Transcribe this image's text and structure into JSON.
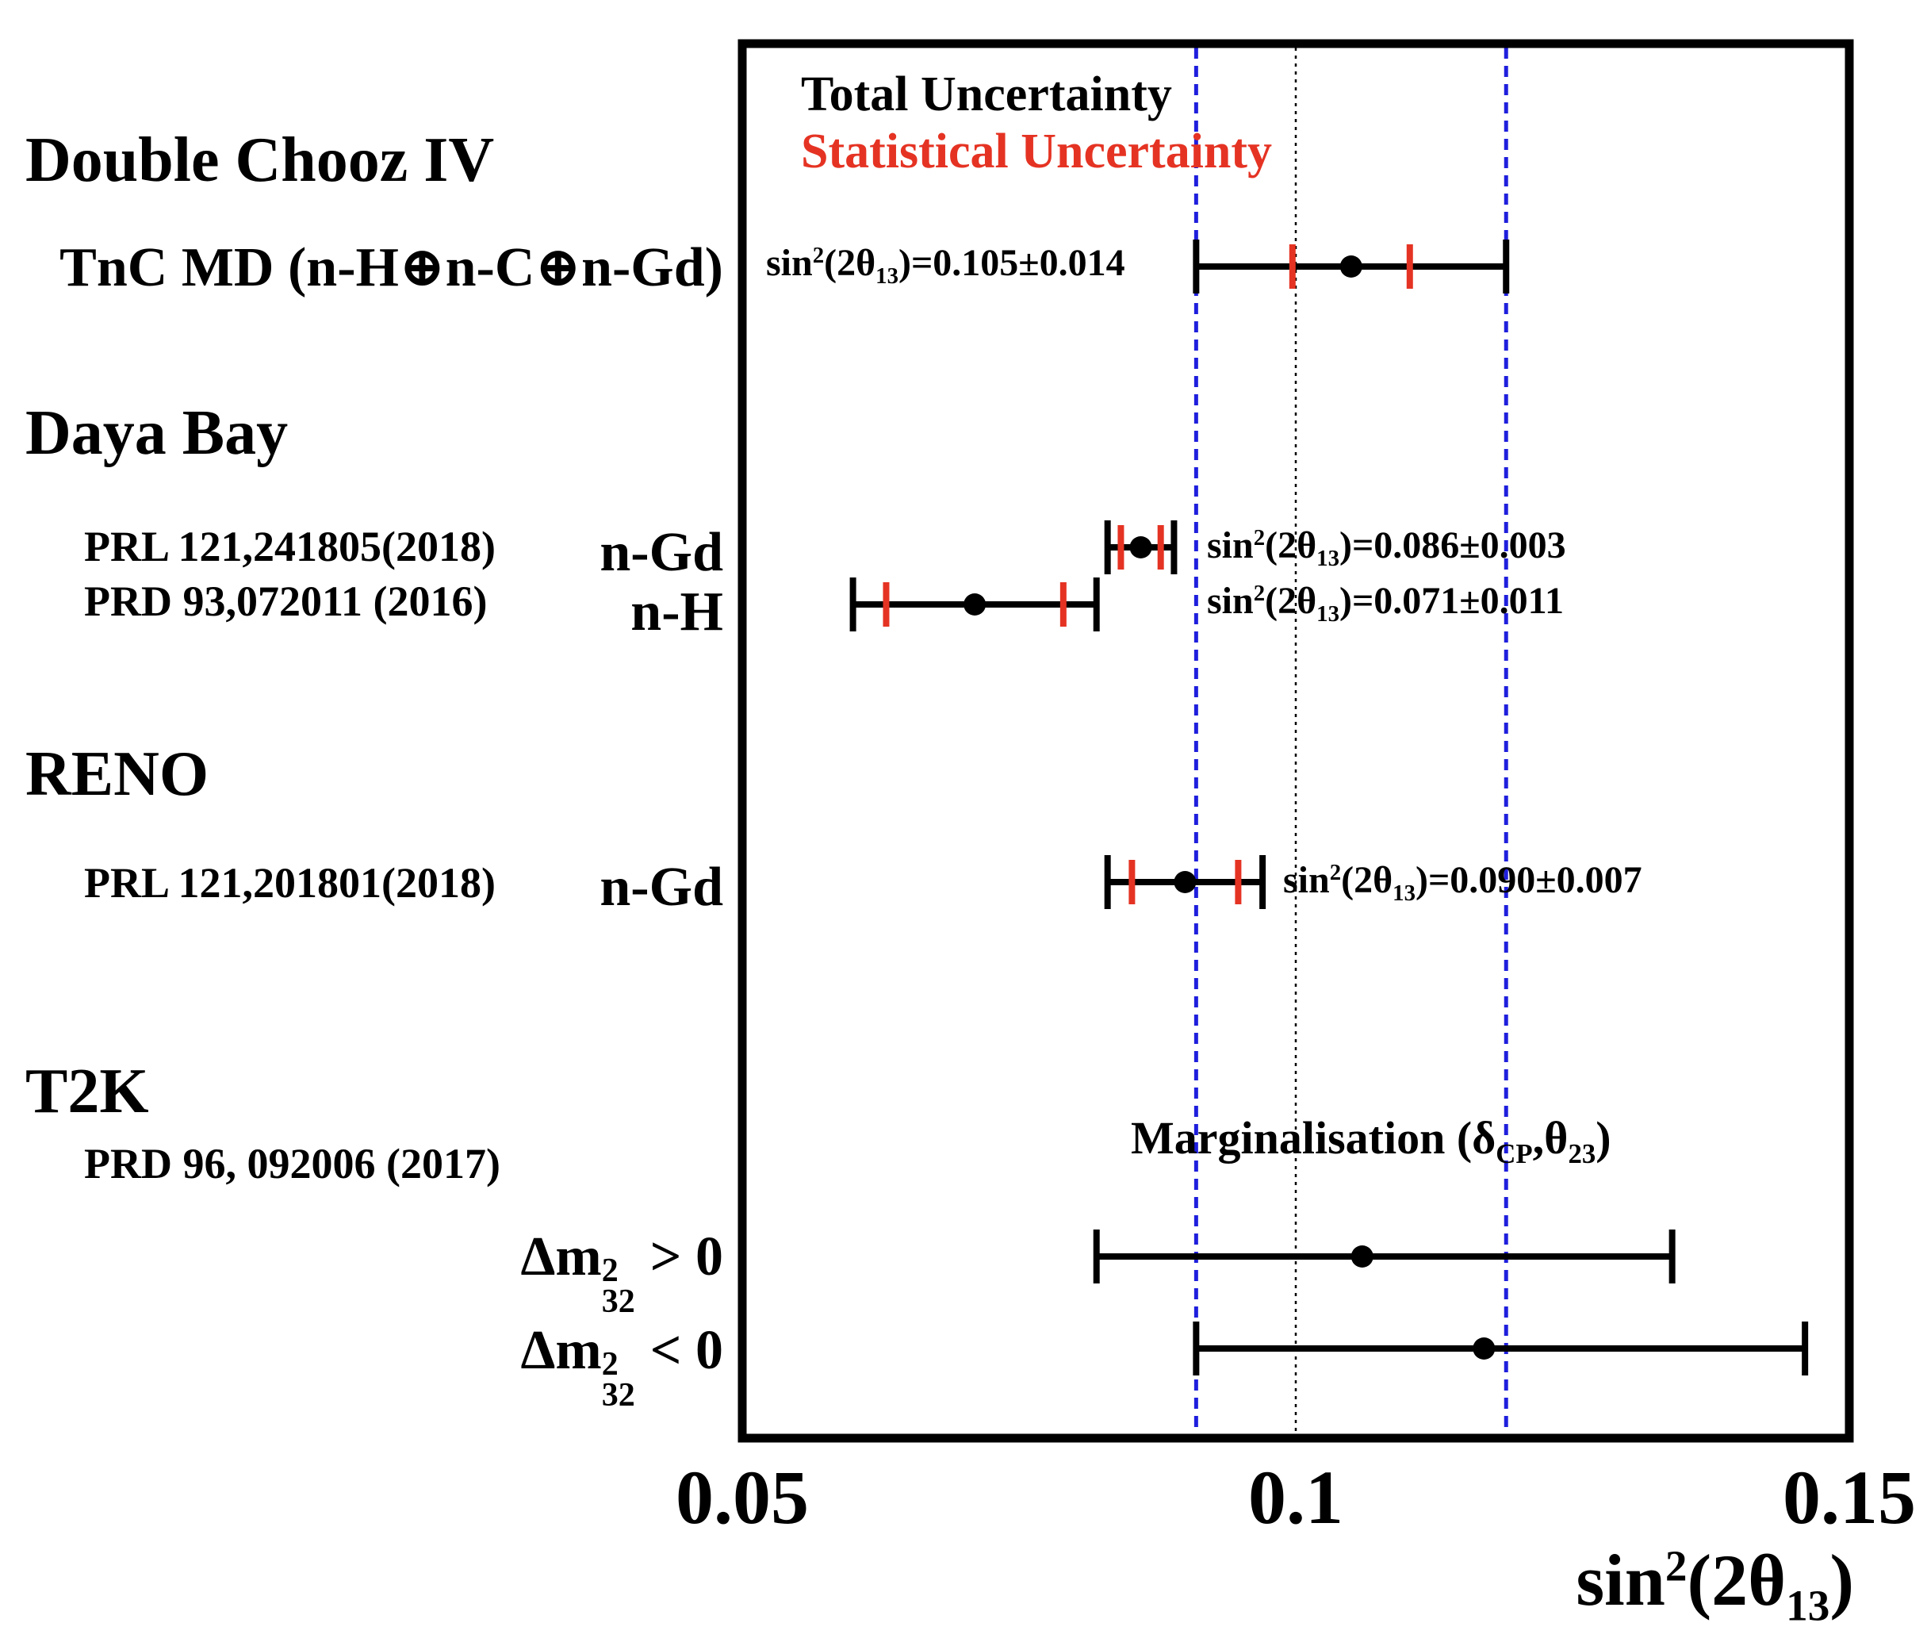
{
  "chart_data": {
    "type": "forest_errorbar",
    "xlabel": "sin²(2θ₁₃)",
    "xlim": [
      0.05,
      0.15
    ],
    "ticks": [
      "0.05",
      "0.1",
      "0.15"
    ],
    "legend": {
      "total": "Total Uncertainty",
      "stat": "Statistical Uncertainty",
      "position": "top-left"
    },
    "reference_lines": {
      "central": 0.1,
      "band": [
        0.091,
        0.119
      ]
    },
    "colors": {
      "total": "#000000",
      "stat": "#e53323",
      "reference": "#1f1fdd"
    },
    "groups": [
      {
        "experiment": "Double Chooz IV",
        "points": [
          {
            "ref": "",
            "detection": "TnC MD (n-H⊕n-C⊕n-Gd)",
            "value": 0.105,
            "total_err": 0.014,
            "stat_err": 0.0053,
            "label_prefix": "sin",
            "label_sup": "2",
            "label_mid": "(2θ",
            "label_sub": "13",
            "label_tail": ")=0.105±0.014"
          }
        ]
      },
      {
        "experiment": "Daya Bay",
        "points": [
          {
            "ref": "PRL 121,241805(2018)",
            "detection": "n-Gd",
            "value": 0.086,
            "total_err": 0.003,
            "stat_err": 0.0018,
            "label_prefix": "sin",
            "label_sup": "2",
            "label_mid": "(2θ",
            "label_sub": "13",
            "label_tail": ")=0.086±0.003"
          },
          {
            "ref": "PRD 93,072011 (2016)",
            "detection": "n-H",
            "value": 0.071,
            "total_err": 0.011,
            "stat_err": 0.008,
            "label_prefix": "sin",
            "label_sup": "2",
            "label_mid": "(2θ",
            "label_sub": "13",
            "label_tail": ")=0.071±0.011"
          }
        ]
      },
      {
        "experiment": "RENO",
        "points": [
          {
            "ref": "PRL 121,201801(2018)",
            "detection": "n-Gd",
            "value": 0.09,
            "total_err": 0.007,
            "stat_err": 0.0048,
            "label_prefix": "sin",
            "label_sup": "2",
            "label_mid": "(2θ",
            "label_sub": "13",
            "label_tail": ")=0.090±0.007"
          }
        ]
      },
      {
        "experiment": "T2K",
        "ref": "PRD 96, 092006 (2017)",
        "annotation": {
          "text": "Marginalisation (δ",
          "sub1": "CP",
          "mid": ",θ",
          "sub2": "23",
          "tail": ")"
        },
        "points": [
          {
            "detection": "Δm",
            "det_sup": "2",
            "det_sub": "32",
            "det_tail": " > 0",
            "value": 0.106,
            "err_low": 0.024,
            "err_high": 0.028
          },
          {
            "detection": "Δm",
            "det_sup": "2",
            "det_sub": "32",
            "det_tail": " < 0",
            "value": 0.117,
            "err_low": 0.026,
            "err_high": 0.029
          }
        ]
      }
    ]
  }
}
